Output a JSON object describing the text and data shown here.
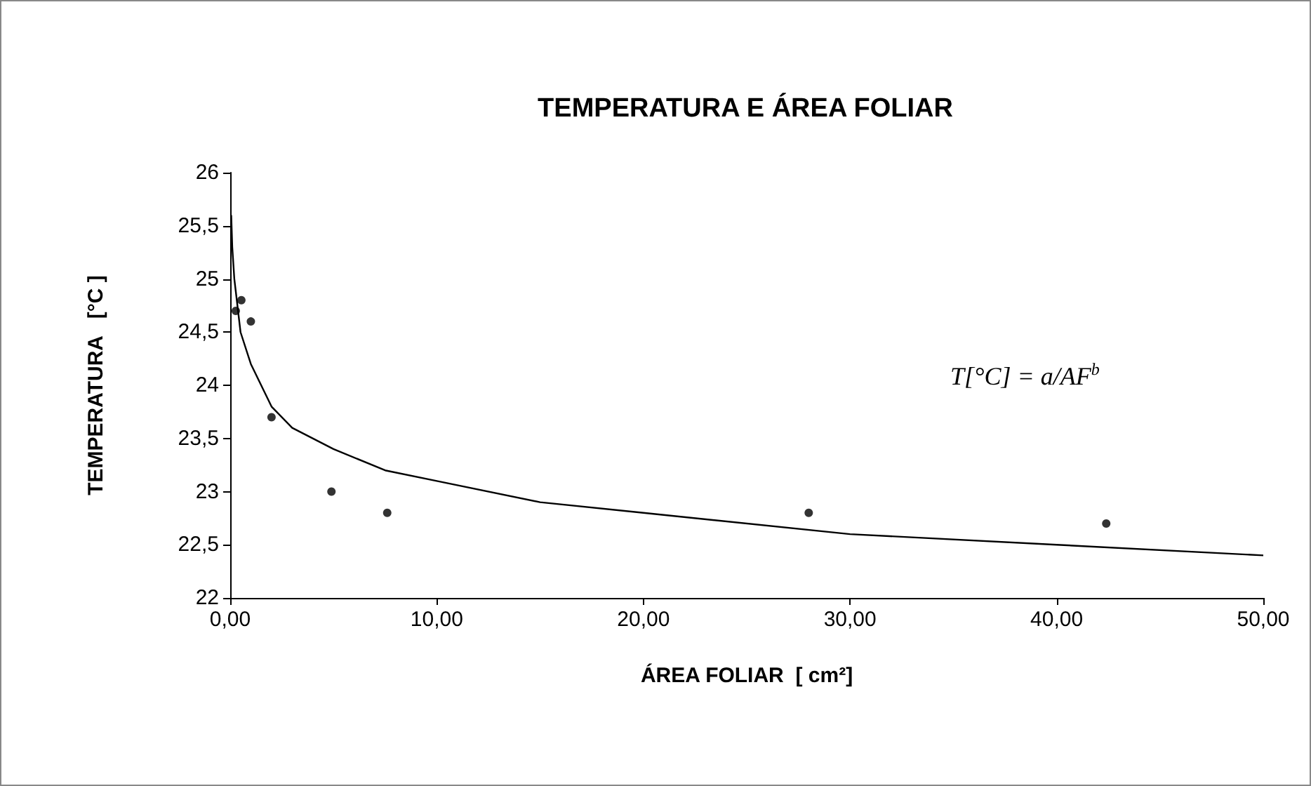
{
  "chart_data": {
    "type": "scatter",
    "title": "TEMPERATURA E ÁREA FOLIAR",
    "xlabel": "ÁREA FOLIAR  [ cm²]",
    "ylabel": "TEMPERATURA   [°C ]",
    "annotations": [
      "T[°C] = a/AF$^{b}$"
    ],
    "series": [
      {
        "marker": "circle",
        "color": "#000000",
        "x": [
          0.27,
          0.54,
          1.0,
          2.0,
          4.9,
          7.6,
          28.0,
          42.4
        ],
        "values": [
          24.7,
          24.8,
          24.6,
          23.7,
          23.0,
          22.8,
          22.8,
          22.7
        ]
      },
      {
        "type": "line",
        "marker": "none",
        "color": "#000000",
        "x": [
          0.05,
          0.1,
          0.2,
          0.5,
          1,
          2,
          3,
          5,
          7.5,
          10,
          15,
          20,
          30,
          40,
          50
        ],
        "values": [
          25.6,
          25.3,
          25.0,
          24.5,
          24.2,
          23.8,
          23.6,
          23.4,
          23.2,
          23.1,
          22.9,
          22.8,
          22.6,
          22.5,
          22.4
        ]
      }
    ],
    "xlim": [
      0,
      50
    ],
    "xticks": [
      {
        "value": 0,
        "label": "0,00"
      },
      {
        "value": 10,
        "label": "10,00"
      },
      {
        "value": 20,
        "label": "20,00"
      },
      {
        "value": 30,
        "label": "30,00"
      },
      {
        "value": 40,
        "label": "40,00"
      },
      {
        "value": 50,
        "label": "50,00"
      }
    ],
    "ylim": [
      22,
      26
    ],
    "yticks": [
      22,
      {
        "value": 22.5,
        "label": "22,5"
      },
      23,
      {
        "value": 23.5,
        "label": "23,5"
      },
      24,
      {
        "value": 24.5,
        "label": "24,5"
      },
      25,
      {
        "value": 25.5,
        "label": "25,5"
      },
      26
    ]
  }
}
